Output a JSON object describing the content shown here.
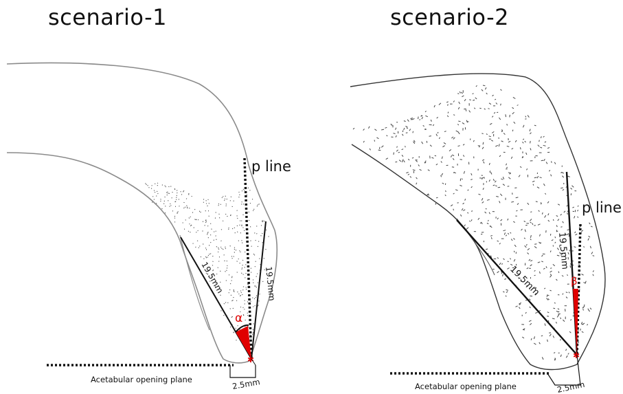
{
  "panels": [
    {
      "title": "scenario-1",
      "p_line_label": "p line",
      "left_measure": "19.5mm",
      "right_measure": "19.5mm",
      "angle_label": "α",
      "plane_label": "Acetabular opening plane",
      "offset_label": "2.5mm"
    },
    {
      "title": "scenario-2",
      "p_line_label": "p line",
      "left_measure": "19.5mm",
      "right_measure": "19.5mm",
      "angle_label": "β",
      "plane_label": "Acetabular opening plane",
      "offset_label": "2.5mm"
    }
  ],
  "colors": {
    "outline": "#8a8a8a",
    "line": "#111111",
    "angle_fill": "#e00000",
    "stipple": "#444444"
  }
}
